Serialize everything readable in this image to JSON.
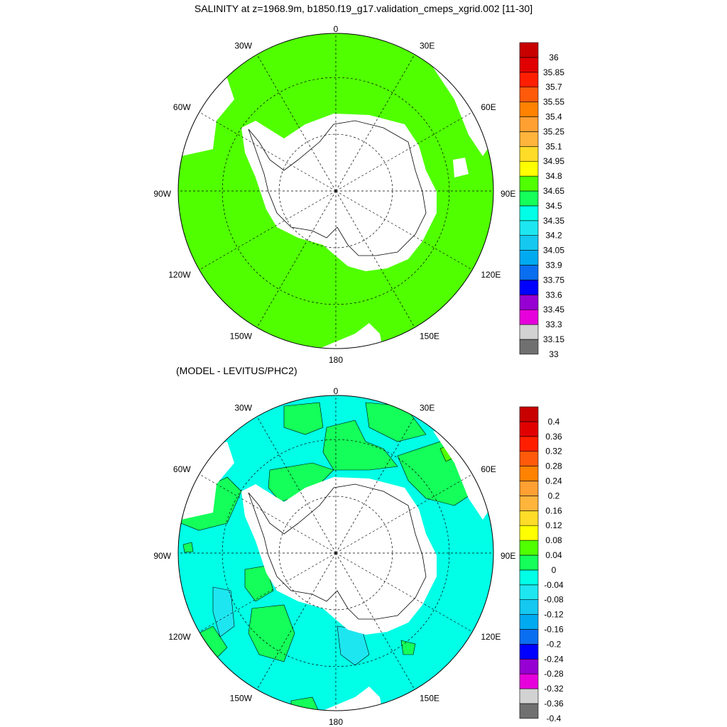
{
  "main_title": "SALINITY at z=1968.9m, b1850.f19_g17.validation_cmeps_xgrid.002 [11-30]",
  "sub_title": "(MODEL - LEVITUS/PHC2)",
  "chart_data": [
    {
      "type": "polar_map",
      "projection": "south-polar stereographic",
      "longitude_labels": [
        "0",
        "30E",
        "60E",
        "90E",
        "120E",
        "150E",
        "180",
        "150W",
        "120W",
        "90W",
        "60W",
        "30W"
      ],
      "grid": true,
      "colorbar": {
        "levels": [
          "33",
          "33.15",
          "33.3",
          "33.45",
          "33.6",
          "33.75",
          "33.9",
          "34.05",
          "34.2",
          "34.35",
          "34.5",
          "34.65",
          "34.8",
          "34.95",
          "35.1",
          "35.25",
          "35.4",
          "35.55",
          "35.7",
          "35.85",
          "36"
        ],
        "colors": [
          "#707070",
          "#d2d2d2",
          "#e600dc",
          "#9600d2",
          "#0000ff",
          "#0a6ef0",
          "#00aaf0",
          "#14c8f0",
          "#1ee6f0",
          "#00ffe6",
          "#14ff5a",
          "#50ff00",
          "#ffff00",
          "#ffdc28",
          "#ffb43c",
          "#ffa032",
          "#ff8200",
          "#ff5a0a",
          "#ff1e00",
          "#e10000",
          "#c80000"
        ]
      },
      "dominant_fill": "#50ff00"
    },
    {
      "type": "polar_map",
      "projection": "south-polar stereographic",
      "longitude_labels": [
        "0",
        "30E",
        "60E",
        "90E",
        "120E",
        "150E",
        "180",
        "150W",
        "120W",
        "90W",
        "60W",
        "30W"
      ],
      "grid": true,
      "colorbar": {
        "levels": [
          "-0.4",
          "-0.36",
          "-0.32",
          "-0.28",
          "-0.24",
          "-0.2",
          "-0.16",
          "-0.12",
          "-0.08",
          "-0.04",
          "0",
          "0.04",
          "0.08",
          "0.12",
          "0.16",
          "0.2",
          "0.24",
          "0.28",
          "0.32",
          "0.36",
          "0.4"
        ],
        "colors": [
          "#707070",
          "#d2d2d2",
          "#e600dc",
          "#9600d2",
          "#0000ff",
          "#0a6ef0",
          "#00aaf0",
          "#14c8f0",
          "#1ee6f0",
          "#00ffe6",
          "#14ff5a",
          "#50ff00",
          "#ffff00",
          "#ffdc28",
          "#ffb43c",
          "#ffa032",
          "#ff8200",
          "#ff5a0a",
          "#ff1e00",
          "#e10000",
          "#c80000"
        ]
      },
      "dominant_fill": "#00ffe6"
    }
  ]
}
